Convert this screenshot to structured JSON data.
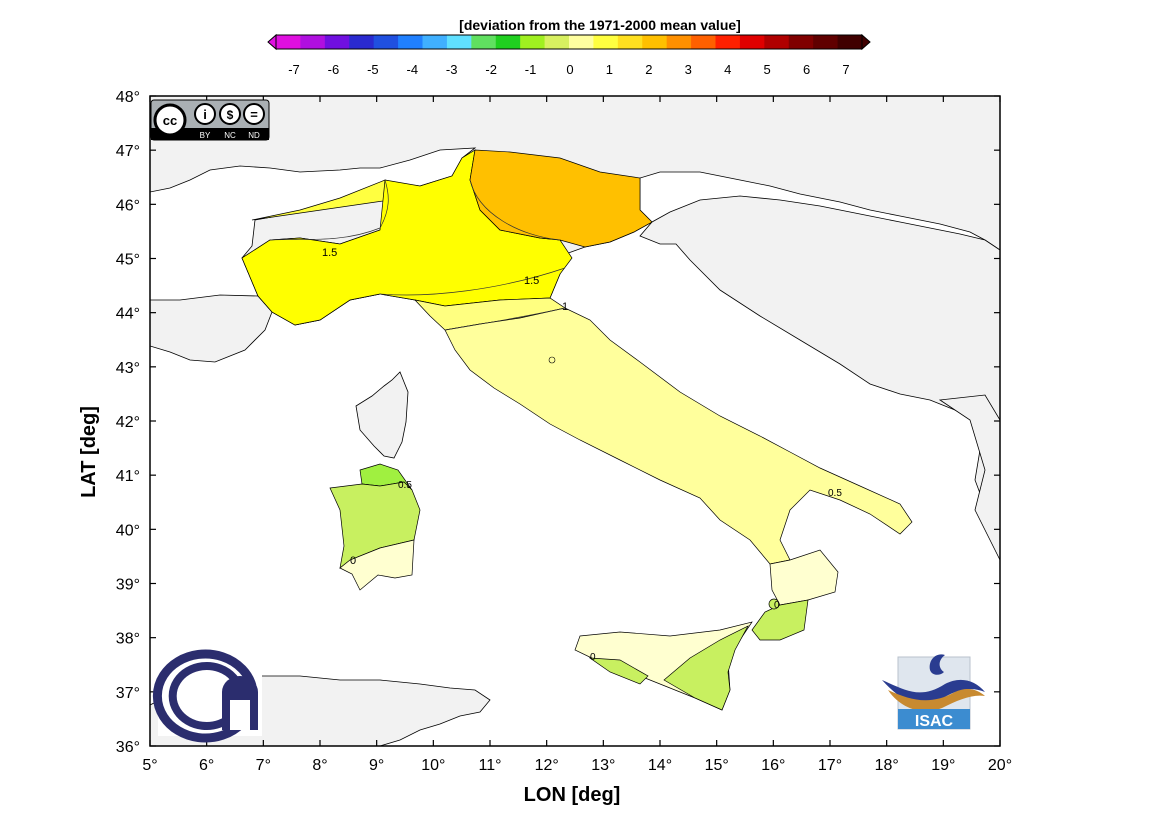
{
  "colorbar": {
    "title": "[deviation from the 1971-2000 mean value]",
    "ticks": [
      "-7",
      "-6",
      "-5",
      "-4",
      "-3",
      "-2",
      "-1",
      "0",
      "1",
      "2",
      "3",
      "4",
      "5",
      "6",
      "7"
    ],
    "colors": [
      "#e010e0",
      "#b010e0",
      "#7010e0",
      "#2a2ad0",
      "#2050e0",
      "#2080ff",
      "#40b0ff",
      "#60e0ff",
      "#60e060",
      "#20d020",
      "#a0f020",
      "#d8f060",
      "#ffffa0",
      "#ffff40",
      "#ffe020",
      "#ffc000",
      "#ff9000",
      "#ff6000",
      "#ff2000",
      "#e00000",
      "#b00000",
      "#800000",
      "#600000",
      "#400000"
    ]
  },
  "axes": {
    "xlabel": "LON [deg]",
    "ylabel": "LAT [deg]",
    "xticks": [
      "5°",
      "6°",
      "7°",
      "8°",
      "9°",
      "10°",
      "11°",
      "12°",
      "13°",
      "14°",
      "15°",
      "16°",
      "17°",
      "18°",
      "19°",
      "20°"
    ],
    "yticks": [
      "48°",
      "47°",
      "46°",
      "45°",
      "44°",
      "43°",
      "42°",
      "41°",
      "40°",
      "39°",
      "38°",
      "37°",
      "36°"
    ],
    "xlim": [
      5,
      20
    ],
    "ylim": [
      36,
      48
    ]
  },
  "contours": {
    "c1": "1.5",
    "c2": "1.5",
    "c3": "1",
    "c4": "0.5",
    "c5": "0",
    "c6": "0.5",
    "c7": "0",
    "c8": "0",
    "c9": "0"
  },
  "logos": {
    "cc_badge": {
      "icon": "cc-by-nc-nd-icon",
      "by": "BY",
      "nc": "NC",
      "nd": "ND"
    },
    "cnr": {
      "icon": "cnr-logo-icon",
      "color": "#2b2d6e"
    },
    "isac": {
      "icon": "isac-logo-icon",
      "text": "ISAC"
    }
  },
  "colors": {
    "land_outside": "#f2f2f2",
    "sea": "#ffffff",
    "north_italy": "#ffff00",
    "north_italy_west": "#ffff40",
    "north_east": "#ffc000",
    "central": "#ffff9c",
    "south": "#ffffd0",
    "green_light": "#c8f060",
    "green_mid": "#a0f040"
  }
}
